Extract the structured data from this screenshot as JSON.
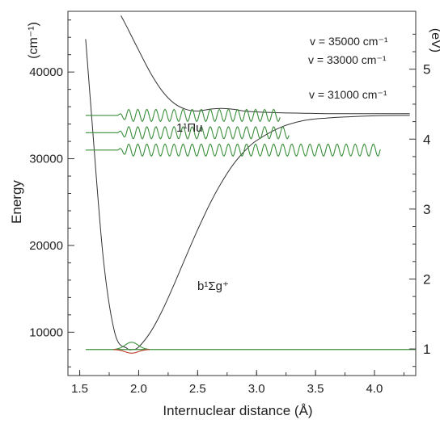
{
  "chart_data": {
    "type": "line",
    "xlabel": "Internuclear distance (Å)",
    "ylabel": "Energy",
    "ylabel_unit": "(cm⁻¹)",
    "y2label_unit": "(eV)",
    "xlim": [
      1.4,
      4.35
    ],
    "ylim": [
      5000,
      47000
    ],
    "x_ticks": [
      1.5,
      2.0,
      2.5,
      3.0,
      3.5,
      4.0
    ],
    "x_tick_labels": [
      "1.5",
      "2.0",
      "2.5",
      "3.0",
      "3.5",
      "4.0"
    ],
    "y_ticks": [
      10000,
      20000,
      30000,
      40000
    ],
    "y_tick_labels": [
      "10000",
      "20000",
      "30000",
      "40000"
    ],
    "y2_ticks_ev": [
      1,
      2,
      3,
      4,
      5
    ],
    "y2_tick_labels": [
      "1",
      "2",
      "3",
      "4",
      "5"
    ],
    "grid": false,
    "colors": {
      "potential": "#333333",
      "wavefunction": "#3a8f3a",
      "ground_vib": "#c0392b",
      "frame": "#333333"
    },
    "series": [
      {
        "name": "b¹Σg⁺",
        "kind": "potential",
        "x": [
          1.55,
          1.6,
          1.7,
          1.8,
          1.9,
          1.95,
          2.0,
          2.1,
          2.2,
          2.3,
          2.4,
          2.5,
          2.6,
          2.7,
          2.8,
          2.9,
          3.0,
          3.2,
          3.4,
          3.6,
          3.8,
          4.0,
          4.3
        ],
        "y": [
          43800,
          35000,
          18500,
          9800,
          8150,
          8000,
          8300,
          10000,
          12500,
          15500,
          18700,
          21800,
          24700,
          27200,
          29300,
          30900,
          32100,
          33600,
          34400,
          34700,
          34850,
          34950,
          35000
        ]
      },
      {
        "name": "1¹Πu",
        "kind": "potential",
        "x": [
          1.85,
          1.9,
          2.0,
          2.1,
          2.2,
          2.3,
          2.4,
          2.5,
          2.6,
          2.7,
          2.8,
          2.9,
          3.0,
          3.2,
          3.4,
          3.6,
          3.8,
          4.0,
          4.3
        ],
        "y": [
          46500,
          45200,
          42500,
          39900,
          37800,
          36400,
          35700,
          35500,
          35700,
          35800,
          35700,
          35500,
          35400,
          35300,
          35250,
          35200,
          35200,
          35200,
          35200
        ]
      }
    ],
    "vibrational_levels": [
      {
        "energy": 31000,
        "x_start": 1.55,
        "x_end": 4.05,
        "label": "v = 31000 cm⁻¹"
      },
      {
        "energy": 33000,
        "x_start": 1.55,
        "x_end": 3.28,
        "label": "v = 33000 cm⁻¹"
      },
      {
        "energy": 35000,
        "x_start": 1.55,
        "x_end": 3.2,
        "label": "v = 35000 cm⁻¹"
      }
    ],
    "ground_vibrational_energy": 8000,
    "annotations": {
      "state_upper": "1¹Πu",
      "state_lower": "b¹Σg⁺",
      "v1_label": "v = 35000 cm⁻¹",
      "v2_label": "v = 33000 cm⁻¹",
      "v3_label": "v = 31000 cm⁻¹"
    }
  }
}
